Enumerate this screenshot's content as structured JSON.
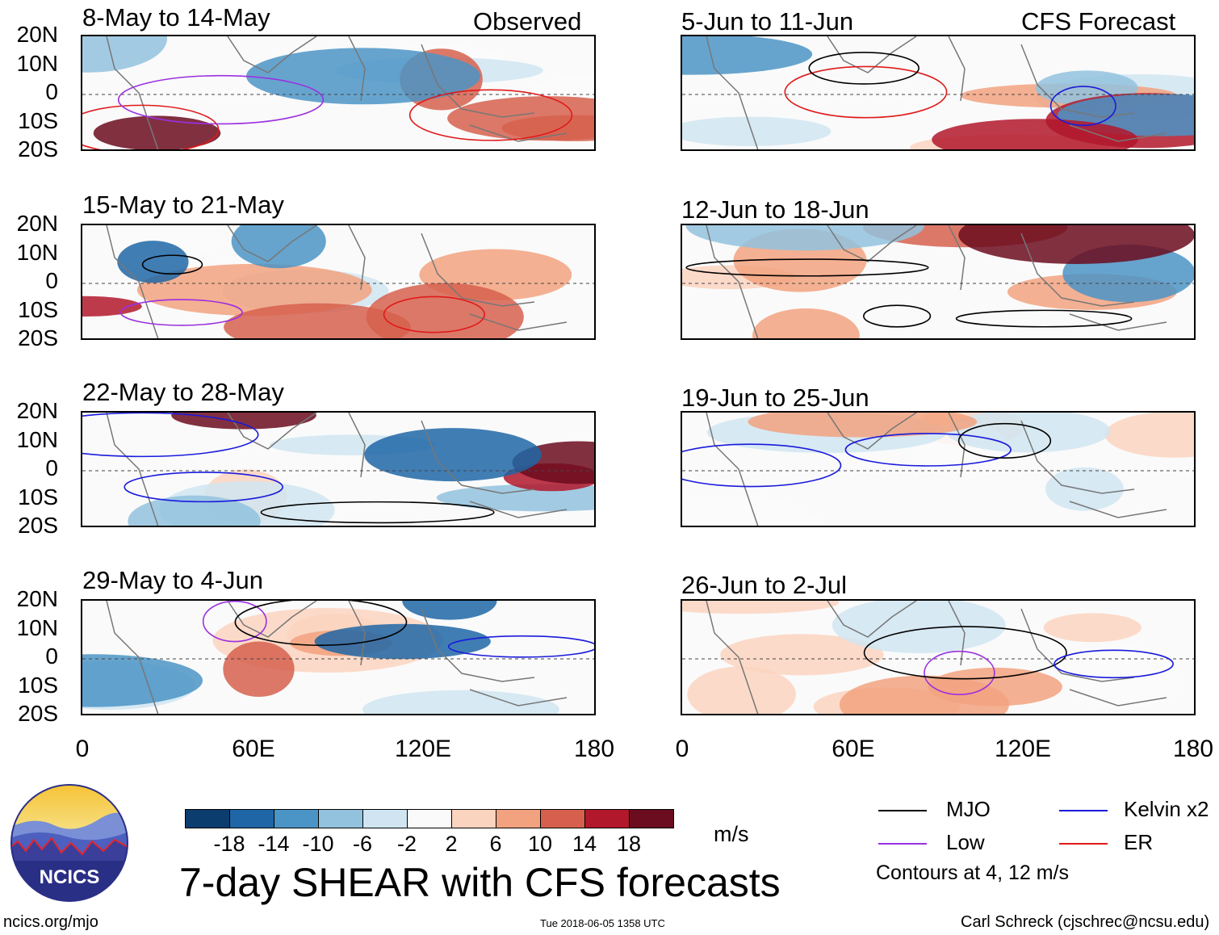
{
  "chart_data": {
    "type": "heatmap",
    "title": "7-day SHEAR with CFS forecasts",
    "units": "m/s",
    "columns": [
      {
        "role": "Observed",
        "panels": [
          "8-May to 14-May",
          "15-May to 21-May",
          "22-May to 28-May",
          "29-May to 4-Jun"
        ]
      },
      {
        "role": "CFS Forecast",
        "panels": [
          "5-Jun to 11-Jun",
          "12-Jun to 18-Jun",
          "19-Jun to 25-Jun",
          "26-Jun to 2-Jul"
        ]
      }
    ],
    "x_ticks": [
      "0",
      "60E",
      "120E",
      "180"
    ],
    "y_ticks": [
      "20N",
      "10N",
      "0",
      "10S",
      "20S"
    ],
    "xlim": [
      0,
      180
    ],
    "ylim": [
      -20,
      20
    ],
    "colorbar": {
      "labels": [
        "-18",
        "-14",
        "-10",
        "-6",
        "-2",
        "2",
        "6",
        "10",
        "14",
        "18"
      ],
      "colors": [
        "#0b3d6e",
        "#1f66a6",
        "#4b94c6",
        "#92c2de",
        "#d0e5f1",
        "#fafafa",
        "#fbd4c0",
        "#f2a27f",
        "#d6604d",
        "#b2182b",
        "#6b0c1f"
      ]
    },
    "legend": [
      {
        "label": "MJO",
        "color": "#000000"
      },
      {
        "label": "Kelvin x2",
        "color": "#1a1adc"
      },
      {
        "label": "Low",
        "color": "#9b30e0"
      },
      {
        "label": "ER",
        "color": "#e01a1a"
      }
    ],
    "contour_note": "Contours at 4, 12 m/s"
  },
  "footer": {
    "site": "ncics.org/mjo",
    "timestamp": "Tue 2018-06-05 1358 UTC",
    "credit": "Carl Schreck (cjschrec@ncsu.edu)",
    "logo_text": "NCICS"
  }
}
